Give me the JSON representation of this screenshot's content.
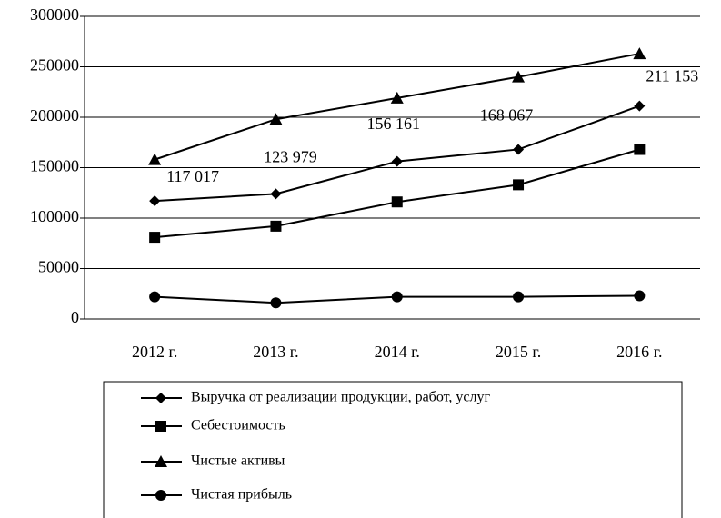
{
  "chart_data": {
    "type": "line",
    "categories": [
      "2012 г.",
      "2013 г.",
      "2014 г.",
      "2015 г.",
      "2016 г."
    ],
    "series": [
      {
        "name": "Выручка от реализации продукции, работ, услуг",
        "color": "#000000",
        "marker": "diamond",
        "values": [
          117017,
          123979,
          156161,
          168067,
          211153
        ],
        "value_labels": [
          "117 017",
          "123 979",
          "156 161",
          "168 067",
          "211 153"
        ]
      },
      {
        "name": "Себестоимость",
        "color": "#000000",
        "marker": "square",
        "values": [
          81000,
          92000,
          116000,
          133000,
          168000
        ]
      },
      {
        "name": "Чистые активы",
        "color": "#000000",
        "marker": "triangle",
        "values": [
          158000,
          198000,
          219000,
          240000,
          263000
        ]
      },
      {
        "name": "Чистая прибыль",
        "color": "#000000",
        "marker": "circle",
        "values": [
          22000,
          16000,
          22000,
          22000,
          23000
        ]
      }
    ],
    "ylim": [
      0,
      300000
    ],
    "yticks": [
      0,
      50000,
      100000,
      150000,
      200000,
      250000,
      300000
    ],
    "grid": true
  }
}
